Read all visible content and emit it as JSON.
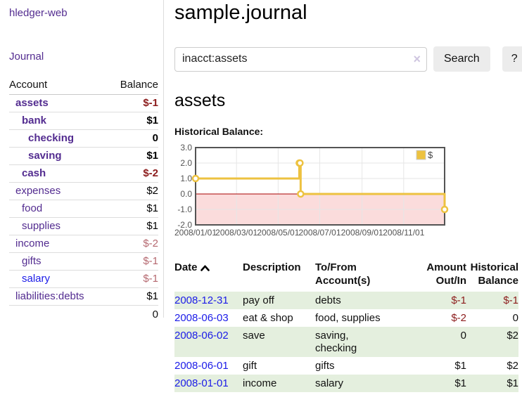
{
  "sidebar": {
    "brand": "hledger-web",
    "journal_link": "Journal",
    "accounts_table": {
      "headers": [
        "Account",
        "Balance"
      ],
      "rows": [
        {
          "name": "assets",
          "indent": 1,
          "bold": true,
          "link_color": "purple",
          "balance": "$-1",
          "balance_style": "neg-strong"
        },
        {
          "name": "bank",
          "indent": 2,
          "bold": true,
          "link_color": "purple",
          "balance": "$1",
          "balance_style": "pos"
        },
        {
          "name": "checking",
          "indent": 3,
          "bold": true,
          "link_color": "purple",
          "balance": "0",
          "balance_style": "pos"
        },
        {
          "name": "saving",
          "indent": 3,
          "bold": true,
          "link_color": "purple",
          "balance": "$1",
          "balance_style": "pos"
        },
        {
          "name": "cash",
          "indent": 2,
          "bold": true,
          "link_color": "purple",
          "balance": "$-2",
          "balance_style": "neg-strong"
        },
        {
          "name": "expenses",
          "indent": 1,
          "bold": false,
          "link_color": "purple",
          "balance": "$2",
          "balance_style": "pos"
        },
        {
          "name": "food",
          "indent": 2,
          "bold": false,
          "link_color": "purple",
          "balance": "$1",
          "balance_style": "pos"
        },
        {
          "name": "supplies",
          "indent": 2,
          "bold": false,
          "link_color": "purple",
          "balance": "$1",
          "balance_style": "pos"
        },
        {
          "name": "income",
          "indent": 1,
          "bold": false,
          "link_color": "purple",
          "balance": "$-2",
          "balance_style": "neg-soft"
        },
        {
          "name": "gifts",
          "indent": 2,
          "bold": false,
          "link_color": "purple",
          "balance": "$-1",
          "balance_style": "neg-soft"
        },
        {
          "name": "salary",
          "indent": 2,
          "bold": false,
          "link_color": "blue",
          "balance": "$-1",
          "balance_style": "neg-soft"
        },
        {
          "name": "liabilities:debts",
          "indent": 1,
          "bold": false,
          "link_color": "purple",
          "balance": "$1",
          "balance_style": "pos"
        }
      ],
      "total": "0"
    }
  },
  "main": {
    "title": "sample.journal",
    "search": {
      "value": "inacct:assets",
      "clear_icon": "×",
      "search_button": "Search",
      "help_button": "?"
    },
    "account_heading": "assets",
    "chart_label": "Historical Balance:"
  },
  "chart_data": {
    "type": "line",
    "step": true,
    "title": "Historical Balance",
    "xrange": [
      "2008-01-01",
      "2008-12-31"
    ],
    "ylim": [
      -2,
      3
    ],
    "yticks": [
      {
        "v": 3,
        "label": "3.0"
      },
      {
        "v": 2,
        "label": "2.0"
      },
      {
        "v": 1,
        "label": "1.0"
      },
      {
        "v": 0,
        "label": "0.0"
      },
      {
        "v": -1,
        "label": "-1.0"
      },
      {
        "v": -2,
        "label": "-2.0"
      }
    ],
    "xticks": [
      {
        "date": "2008-01-01",
        "label": "2008/01/01"
      },
      {
        "date": "2008-03-01",
        "label": "2008/03/01"
      },
      {
        "date": "2008-05-01",
        "label": "2008/05/01"
      },
      {
        "date": "2008-07-01",
        "label": "2008/07/01"
      },
      {
        "date": "2008-09-01",
        "label": "2008/09/01"
      },
      {
        "date": "2008-11-01",
        "label": "2008/11/01"
      }
    ],
    "series": [
      {
        "name": "$",
        "color": "#edc240",
        "points": [
          {
            "date": "2008-01-01",
            "value": 1
          },
          {
            "date": "2008-06-01",
            "value": 2
          },
          {
            "date": "2008-06-02",
            "value": 2
          },
          {
            "date": "2008-06-03",
            "value": 0
          },
          {
            "date": "2008-12-31",
            "value": -1
          }
        ]
      }
    ],
    "colors": {
      "grid": "#e6e6e6",
      "border": "#545454",
      "tick_text": "#545454",
      "zero_line": "#a80000",
      "negative_fill": "#fbdcdc",
      "legend_box_border": "#cccccc"
    },
    "legend_position": "top-right",
    "grid": true
  },
  "register": {
    "headers": [
      {
        "label": "Date",
        "sortable": true
      },
      {
        "label": "Description"
      },
      {
        "label": "To/From Account(s)"
      },
      {
        "label": "Amount Out/In"
      },
      {
        "label": "Historical Balance"
      }
    ],
    "rows": [
      {
        "date": "2008-12-31",
        "description": "pay off",
        "accounts": "debts",
        "accounts_wrap": false,
        "amount": "$-1",
        "amount_neg": true,
        "balance": "$-1",
        "balance_neg": true
      },
      {
        "date": "2008-06-03",
        "description": "eat & shop",
        "accounts": "food, supplies",
        "accounts_wrap": false,
        "amount": "$-2",
        "amount_neg": true,
        "balance": "0",
        "balance_neg": false
      },
      {
        "date": "2008-06-02",
        "description": "save",
        "accounts": "saving, checking",
        "accounts_wrap": true,
        "amount": "0",
        "amount_neg": false,
        "balance": "$2",
        "balance_neg": false
      },
      {
        "date": "2008-06-01",
        "description": "gift",
        "accounts": "gifts",
        "accounts_wrap": false,
        "amount": "$1",
        "amount_neg": false,
        "balance": "$2",
        "balance_neg": false
      },
      {
        "date": "2008-01-01",
        "description": "income",
        "accounts": "salary",
        "accounts_wrap": false,
        "amount": "$1",
        "amount_neg": false,
        "balance": "$1",
        "balance_neg": false
      }
    ]
  }
}
